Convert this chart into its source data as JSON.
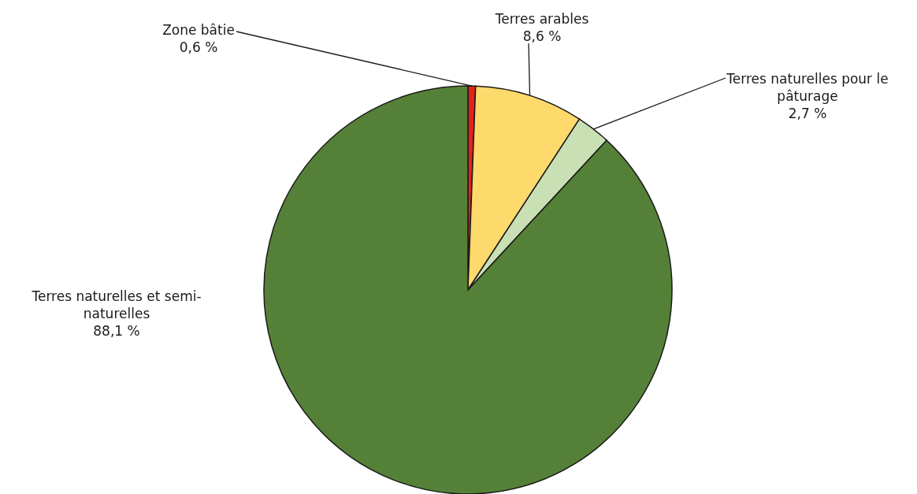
{
  "chart_data": {
    "type": "pie",
    "categories": [
      "Zone bâtie",
      "Terres arables",
      "Terres naturelles pour le pâturage",
      "Terres naturelles et semi-naturelles"
    ],
    "values": [
      0.6,
      8.6,
      2.7,
      88.1
    ],
    "colors": [
      "#e3231b",
      "#fed96b",
      "#c9e0b5",
      "#548137"
    ],
    "value_labels": [
      "0,6 %",
      "8,6 %",
      "2,7 %",
      "88,1 %"
    ]
  }
}
